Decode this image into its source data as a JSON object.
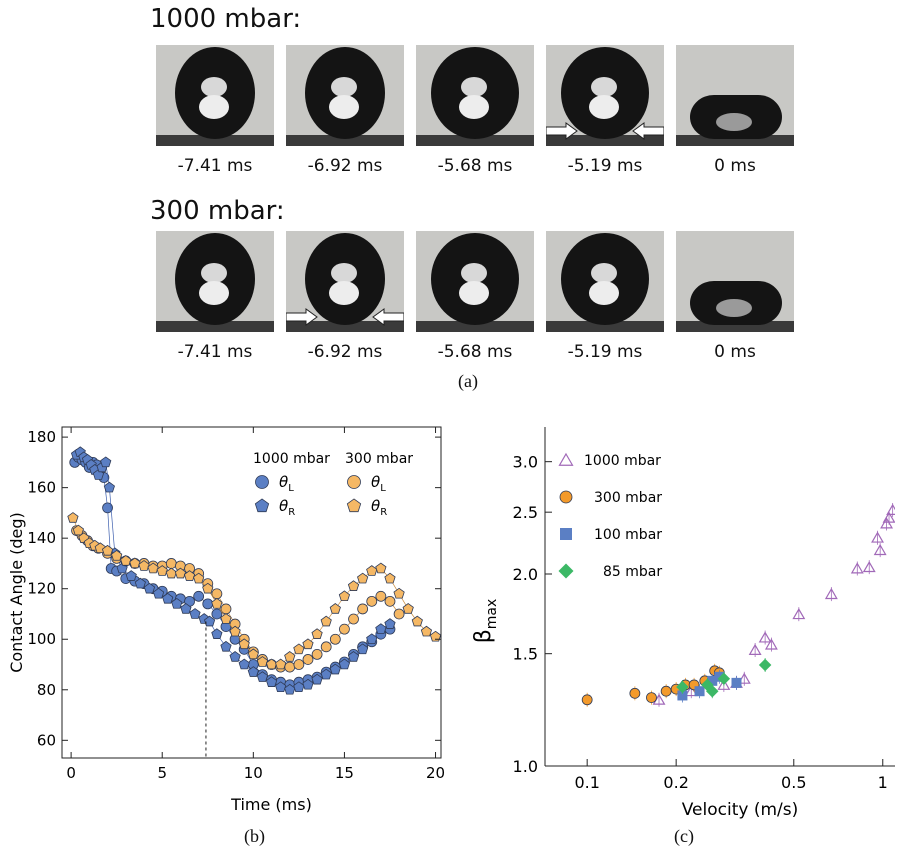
{
  "part_a": {
    "label": "(a)",
    "rows": [
      {
        "heading": "1000 mbar:",
        "times": [
          "-7.41 ms",
          "-6.92 ms",
          "-5.68 ms",
          "-5.19 ms",
          "0 ms"
        ],
        "arrow_frame": 3
      },
      {
        "heading": "300 mbar:",
        "times": [
          "-7.41 ms",
          "-6.92 ms",
          "-5.68 ms",
          "-5.19 ms",
          "0 ms"
        ],
        "arrow_frame": 1
      }
    ]
  },
  "part_b_label": "(b)",
  "part_c_label": "(c)",
  "chart_data": [
    {
      "type": "scatter",
      "xlabel": "Time (ms)",
      "ylabel": "Contact Angle (deg)",
      "xlim": [
        -0.5,
        20.3
      ],
      "ylim": [
        53,
        184
      ],
      "xticks": [
        0,
        5,
        10,
        15,
        20
      ],
      "yticks": [
        60,
        80,
        100,
        120,
        140,
        160,
        180
      ],
      "legend_groups": [
        "1000 mbar",
        "300 mbar"
      ],
      "dashed_marker_x": 7.4,
      "series": [
        {
          "group": "1000 mbar",
          "name": "θL",
          "sub": "L",
          "marker": "circle",
          "color": "#5b7fc4",
          "x": [
            0.2,
            0.4,
            0.6,
            0.8,
            1.0,
            1.2,
            1.4,
            1.6,
            1.8,
            2.0,
            2.2,
            2.5,
            3.0,
            3.5,
            4.0,
            4.5,
            5.0,
            5.5,
            6.0,
            6.5,
            7.0,
            7.5,
            8.0,
            8.5,
            9.0,
            9.5,
            10.0,
            10.5,
            11.0,
            11.5,
            12.0,
            12.5,
            13.0,
            13.5,
            14.0,
            14.5,
            15.0,
            15.5,
            16.0,
            16.5,
            17.0,
            17.5
          ],
          "y": [
            170,
            172,
            171,
            170,
            168,
            170,
            169,
            167,
            164,
            152,
            128,
            127,
            124,
            123,
            122,
            120,
            119,
            117,
            116,
            115,
            117,
            114,
            110,
            105,
            100,
            96,
            90,
            86,
            84,
            83,
            82,
            83,
            84,
            85,
            87,
            89,
            91,
            94,
            97,
            99,
            102,
            104
          ]
        },
        {
          "group": "1000 mbar",
          "name": "θR",
          "sub": "R",
          "marker": "pentagon",
          "color": "#5b7fc4",
          "x": [
            0.3,
            0.5,
            0.7,
            0.9,
            1.1,
            1.3,
            1.5,
            1.7,
            1.9,
            2.1,
            2.4,
            2.8,
            3.3,
            3.8,
            4.3,
            4.8,
            5.3,
            5.8,
            6.3,
            6.8,
            7.3,
            7.6,
            8.0,
            8.5,
            9.0,
            9.5,
            10.0,
            10.5,
            11.0,
            11.5,
            12.0,
            12.5,
            13.0,
            13.5,
            14.0,
            14.5,
            15.0,
            15.5,
            16.0,
            16.5,
            17.0,
            17.5
          ],
          "y": [
            173,
            174,
            172,
            171,
            169,
            167,
            165,
            168,
            170,
            160,
            134,
            128,
            125,
            122,
            120,
            118,
            116,
            114,
            112,
            110,
            108,
            107,
            102,
            97,
            93,
            90,
            87,
            85,
            83,
            81,
            80,
            81,
            82,
            84,
            86,
            88,
            90,
            93,
            96,
            100,
            104,
            106
          ]
        },
        {
          "group": "300 mbar",
          "name": "θL",
          "sub": "L",
          "marker": "circle",
          "color": "#f5b865",
          "x": [
            0.3,
            0.6,
            0.9,
            1.2,
            1.5,
            2.0,
            2.5,
            3.0,
            3.5,
            4.0,
            4.5,
            5.0,
            5.5,
            6.0,
            6.5,
            7.0,
            7.5,
            8.0,
            8.5,
            9.0,
            9.5,
            10.0,
            10.5,
            11.0,
            11.5,
            12.0,
            12.5,
            13.0,
            13.5,
            14.0,
            14.5,
            15.0,
            15.5,
            16.0,
            16.5,
            17.0,
            17.5,
            18.0
          ],
          "y": [
            143,
            141,
            139,
            137,
            136,
            134,
            132,
            131,
            130,
            130,
            129,
            129,
            130,
            129,
            128,
            126,
            122,
            118,
            112,
            106,
            100,
            95,
            92,
            90,
            89,
            89,
            90,
            92,
            94,
            97,
            100,
            104,
            108,
            112,
            115,
            117,
            115,
            110
          ]
        },
        {
          "group": "300 mbar",
          "name": "θR",
          "sub": "R",
          "marker": "pentagon",
          "color": "#f5b865",
          "x": [
            0.1,
            0.4,
            0.7,
            1.0,
            1.3,
            1.6,
            2.0,
            2.5,
            3.0,
            3.5,
            4.0,
            4.5,
            5.0,
            5.5,
            6.0,
            6.5,
            7.0,
            7.5,
            8.0,
            8.5,
            9.0,
            9.5,
            10.0,
            10.5,
            11.0,
            11.5,
            12.0,
            12.5,
            13.0,
            13.5,
            14.0,
            14.5,
            15.0,
            15.5,
            16.0,
            16.5,
            17.0,
            17.5,
            18.0,
            18.5,
            19.0,
            19.5,
            20.0
          ],
          "y": [
            148,
            143,
            140,
            138,
            137,
            136,
            135,
            133,
            131,
            130,
            129,
            128,
            127,
            126,
            126,
            125,
            124,
            120,
            114,
            108,
            103,
            98,
            94,
            91,
            90,
            90,
            93,
            96,
            98,
            102,
            107,
            112,
            117,
            121,
            124,
            127,
            128,
            124,
            118,
            112,
            107,
            103,
            101
          ]
        }
      ]
    },
    {
      "type": "scatter",
      "xlabel": "Velocity (m/s)",
      "ylabel": "β",
      "ylabel_sub": "max",
      "xscale": "log",
      "yscale": "log",
      "xlim": [
        0.072,
        1.1
      ],
      "ylim": [
        1.0,
        3.4
      ],
      "xticks": [
        0.1,
        0.2,
        0.5,
        1
      ],
      "xtick_labels": [
        "0.1",
        "0.2",
        "0.5",
        "1"
      ],
      "yticks": [
        1.0,
        1.5,
        2.0,
        2.5,
        3.0
      ],
      "ytick_labels": [
        "1.0",
        "1.5",
        "2.0",
        "2.5",
        "3.0"
      ],
      "series": [
        {
          "name": "1000 mbar",
          "marker": "triangle-open",
          "color": "#a169b8",
          "x": [
            0.175,
            0.225,
            0.29,
            0.32,
            0.34,
            0.37,
            0.4,
            0.42,
            0.52,
            0.67,
            0.82,
            0.9,
            0.96,
            0.98,
            1.03,
            1.05,
            1.08
          ],
          "y": [
            1.27,
            1.31,
            1.34,
            1.35,
            1.37,
            1.52,
            1.59,
            1.55,
            1.73,
            1.86,
            2.04,
            2.05,
            2.28,
            2.18,
            2.4,
            2.45,
            2.52
          ]
        },
        {
          "name": "300 mbar",
          "marker": "circle",
          "color": "#f39a2b",
          "x": [
            0.1,
            0.145,
            0.165,
            0.185,
            0.2,
            0.215,
            0.23,
            0.25,
            0.27,
            0.28
          ],
          "y": [
            1.27,
            1.3,
            1.28,
            1.31,
            1.32,
            1.34,
            1.34,
            1.36,
            1.41,
            1.4
          ]
        },
        {
          "name": "100 mbar",
          "marker": "square",
          "color": "#5b7fc4",
          "x": [
            0.21,
            0.24,
            0.265,
            0.28,
            0.32
          ],
          "y": [
            1.29,
            1.31,
            1.36,
            1.38,
            1.35
          ]
        },
        {
          "name": "85 mbar",
          "marker": "diamond",
          "color": "#3cb866",
          "x": [
            0.21,
            0.255,
            0.265,
            0.29,
            0.4
          ],
          "y": [
            1.33,
            1.34,
            1.31,
            1.37,
            1.44
          ]
        }
      ]
    }
  ]
}
